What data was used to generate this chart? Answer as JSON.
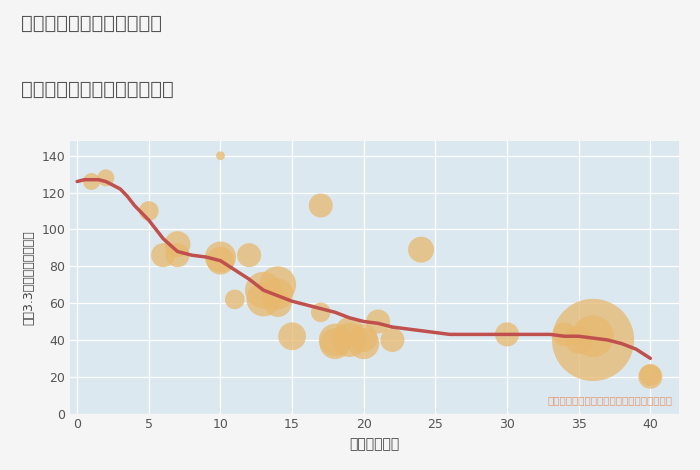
{
  "title_line1": "奈良県高市郡高取町与楽の",
  "title_line2": "築年数別中古マンション価格",
  "xlabel": "築年数（年）",
  "ylabel": "坪（3.3㎡）単価（万円）",
  "ylabel_note": "円の大きさは、取引のあった物件面積を示す",
  "plot_bg_color": "#dce8f0",
  "fig_bg_color": "#f5f5f5",
  "scatter_color": "#e8b86d",
  "scatter_alpha": 0.75,
  "line_color": "#c0504d",
  "line_width": 2.5,
  "xlim": [
    -0.5,
    42
  ],
  "ylim": [
    0,
    148
  ],
  "xticks": [
    0,
    5,
    10,
    15,
    20,
    25,
    30,
    35,
    40
  ],
  "yticks": [
    0,
    20,
    40,
    60,
    80,
    100,
    120,
    140
  ],
  "scatter_x": [
    1,
    2,
    5,
    6,
    7,
    7,
    10,
    10,
    11,
    12,
    13,
    13,
    14,
    14,
    14,
    15,
    17,
    17,
    18,
    18,
    19,
    19,
    20,
    20,
    21,
    22,
    24,
    30,
    34,
    35,
    36,
    36,
    40,
    40
  ],
  "scatter_y": [
    126,
    128,
    110,
    86,
    92,
    86,
    85,
    83,
    62,
    86,
    67,
    62,
    70,
    65,
    60,
    42,
    113,
    55,
    40,
    38,
    45,
    40,
    38,
    41,
    50,
    40,
    89,
    43,
    43,
    40,
    40,
    42,
    20,
    21
  ],
  "scatter_size": [
    150,
    150,
    200,
    300,
    350,
    300,
    500,
    400,
    200,
    300,
    700,
    600,
    700,
    500,
    400,
    400,
    300,
    200,
    550,
    500,
    400,
    600,
    500,
    400,
    300,
    300,
    350,
    300,
    300,
    400,
    3500,
    900,
    300,
    250
  ],
  "outlier_x": [
    10
  ],
  "outlier_y": [
    140
  ],
  "outlier_size": [
    40
  ],
  "trend_x": [
    0,
    0.5,
    1,
    1.5,
    2,
    2.5,
    3,
    3.5,
    4,
    4.5,
    5,
    6,
    7,
    8,
    9,
    10,
    11,
    12,
    13,
    14,
    15,
    16,
    17,
    18,
    19,
    20,
    21,
    22,
    23,
    24,
    25,
    26,
    27,
    28,
    29,
    30,
    31,
    32,
    33,
    34,
    35,
    36,
    37,
    38,
    39,
    40
  ],
  "trend_y": [
    126,
    127,
    127,
    127,
    126,
    124,
    122,
    118,
    113,
    109,
    105,
    95,
    88,
    86,
    85,
    83,
    78,
    73,
    67,
    64,
    61,
    59,
    57,
    55,
    52,
    50,
    49,
    47,
    46,
    45,
    44,
    43,
    43,
    43,
    43,
    43,
    43,
    43,
    43,
    42,
    42,
    41,
    40,
    38,
    35,
    30
  ]
}
